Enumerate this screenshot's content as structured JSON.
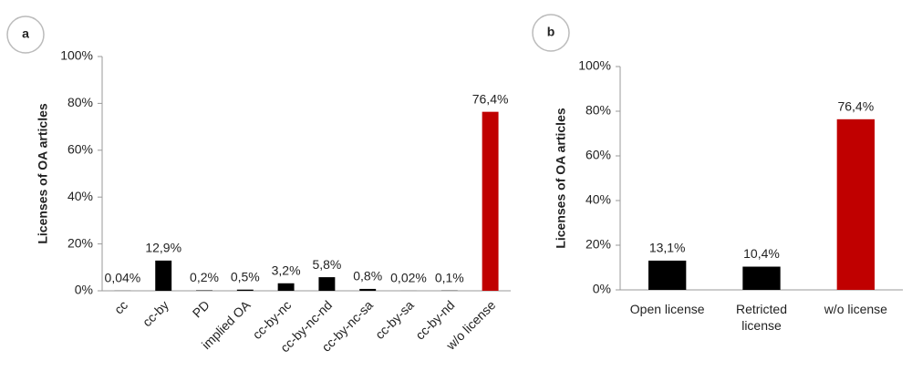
{
  "chart_data": [
    {
      "type": "bar",
      "panel": "a",
      "y_label": "Licenses of OA articles",
      "categories": [
        "cc",
        "cc-by",
        "PD",
        "implied OA",
        "cc-by-nc",
        "cc-by-nc-nd",
        "cc-by-nc-sa",
        "cc-by-sa",
        "cc-by-nd",
        "w/o license"
      ],
      "values": [
        0.04,
        12.9,
        0.2,
        0.5,
        3.2,
        5.8,
        0.8,
        0.02,
        0.1,
        76.4
      ],
      "value_labels": [
        "0,04%",
        "12,9%",
        "0,2%",
        "0,5%",
        "3,2%",
        "5,8%",
        "0,8%",
        "0,02%",
        "0,1%",
        "76,4%"
      ],
      "colors": [
        "#000000",
        "#000000",
        "#000000",
        "#000000",
        "#000000",
        "#000000",
        "#000000",
        "#000000",
        "#000000",
        "#c00000"
      ],
      "ylim": [
        0,
        100
      ],
      "yticks": [
        {
          "value": 0,
          "label": "0%"
        },
        {
          "value": 20,
          "label": "20%"
        },
        {
          "value": 40,
          "label": "40%"
        },
        {
          "value": 60,
          "label": "60%"
        },
        {
          "value": 80,
          "label": "80%"
        },
        {
          "value": 100,
          "label": "100%"
        }
      ]
    },
    {
      "type": "bar",
      "panel": "b",
      "y_label": "Licenses of OA articles",
      "categories": [
        "Open license",
        "Retricted license",
        "w/o license"
      ],
      "values": [
        13.1,
        10.4,
        76.4
      ],
      "value_labels": [
        "13,1%",
        "10,4%",
        "76,4%"
      ],
      "colors": [
        "#000000",
        "#000000",
        "#c00000"
      ],
      "ylim": [
        0,
        100
      ],
      "yticks": [
        {
          "value": 0,
          "label": "0%"
        },
        {
          "value": 20,
          "label": "20%"
        },
        {
          "value": 40,
          "label": "40%"
        },
        {
          "value": 60,
          "label": "60%"
        },
        {
          "value": 80,
          "label": "80%"
        },
        {
          "value": 100,
          "label": "100%"
        }
      ]
    }
  ]
}
